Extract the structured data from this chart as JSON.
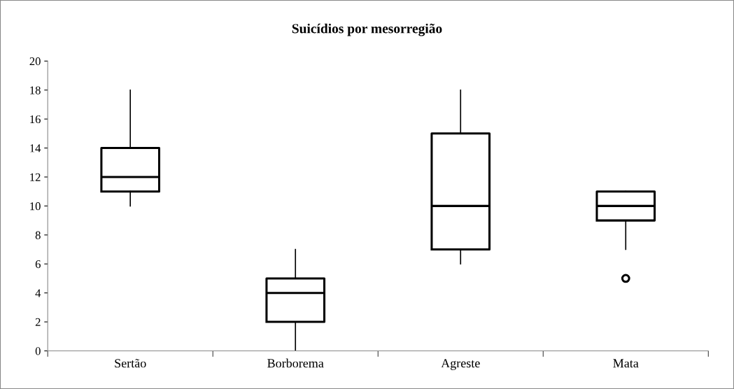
{
  "chart_data": {
    "type": "box",
    "title": "Suicídios por mesorregião",
    "categories": [
      "Sertão",
      "Borborema",
      "Agreste",
      "Mata"
    ],
    "boxes": [
      {
        "low": 10,
        "q1": 11,
        "median": 12,
        "q3": 14,
        "high": 18
      },
      {
        "low": 0,
        "q1": 2,
        "median": 4,
        "q3": 5,
        "high": 7
      },
      {
        "low": 6,
        "q1": 7,
        "median": 10,
        "q3": 15,
        "high": 18
      },
      {
        "low": 7,
        "q1": 9,
        "median": 10,
        "q3": 11,
        "high": 11,
        "outliers": [
          5
        ]
      }
    ],
    "ylim": [
      0,
      20
    ],
    "yticks": [
      0,
      2,
      4,
      6,
      8,
      10,
      12,
      14,
      16,
      18,
      20
    ],
    "grid": false,
    "legend": false
  }
}
